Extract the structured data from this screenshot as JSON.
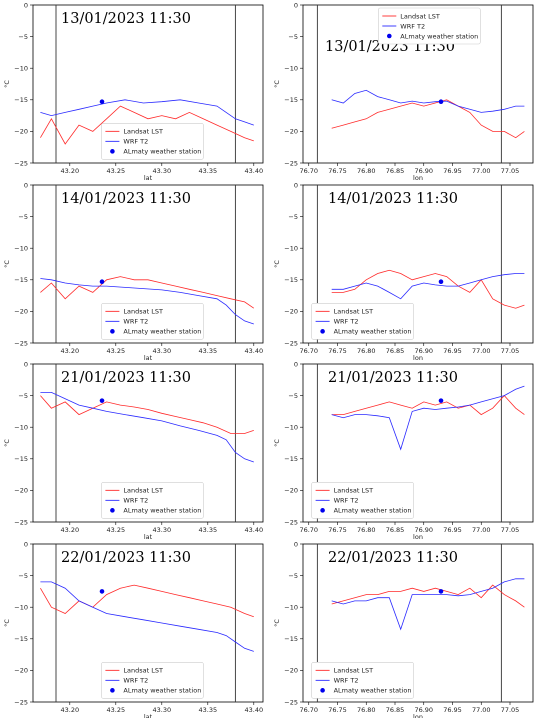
{
  "legend": {
    "lst": "Landsat LST",
    "wrf": "WRF T2",
    "station": "ALmaty weather station"
  },
  "colors": {
    "lst": "#ff2a2a",
    "wrf": "#2a2aff",
    "station": "#0000ee",
    "vline": "#333333"
  },
  "ylabel": "°C",
  "yticks": [
    "0",
    "−5",
    "−10",
    "−15",
    "−20",
    "−25"
  ],
  "ylim": [
    -25,
    0
  ],
  "lat_axis": {
    "label": "lat",
    "ticks": [
      "43.20",
      "43.25",
      "43.30",
      "43.35",
      "43.40"
    ],
    "tick_values": [
      43.2,
      43.25,
      43.3,
      43.35,
      43.4
    ],
    "xlim": [
      43.16,
      43.41
    ],
    "vlines": [
      43.185,
      43.38
    ]
  },
  "lon_axis": {
    "label": "lon",
    "ticks": [
      "76.70",
      "76.75",
      "76.80",
      "76.85",
      "76.90",
      "76.95",
      "77.00",
      "77.05"
    ],
    "tick_values": [
      76.7,
      76.75,
      76.8,
      76.85,
      76.9,
      76.95,
      77.0,
      77.05
    ],
    "xlim": [
      76.69,
      77.09
    ],
    "vlines": [
      76.715,
      77.035
    ]
  },
  "chart_data": [
    {
      "type": "line",
      "date": "13/01/2023 11:30",
      "axis": "lat",
      "legend_pos": "lower-center",
      "station": {
        "x": 43.235,
        "y": -15.3
      },
      "series": [
        {
          "name": "Landsat LST",
          "x": [
            43.168,
            43.18,
            43.195,
            43.21,
            43.225,
            43.24,
            43.255,
            43.27,
            43.285,
            43.3,
            43.315,
            43.33,
            43.345,
            43.36,
            43.375,
            43.39,
            43.4
          ],
          "y": [
            -21,
            -18,
            -22,
            -19,
            -20,
            -18,
            -16,
            -17,
            -18,
            -17.5,
            -18,
            -17,
            -18,
            -19,
            -20,
            -21,
            -21.5
          ]
        },
        {
          "name": "WRF T2",
          "x": [
            43.168,
            43.18,
            43.195,
            43.21,
            43.225,
            43.24,
            43.26,
            43.28,
            43.3,
            43.32,
            43.34,
            43.36,
            43.37,
            43.38,
            43.39,
            43.4
          ],
          "y": [
            -17,
            -17.5,
            -17,
            -16.5,
            -16,
            -15.5,
            -15,
            -15.5,
            -15.3,
            -15,
            -15.5,
            -16,
            -17,
            -18,
            -18.5,
            -19
          ]
        }
      ]
    },
    {
      "type": "line",
      "date": "13/01/2023 11:30",
      "axis": "lon",
      "legend_pos": "top",
      "station": {
        "x": 76.93,
        "y": -15.3
      },
      "series": [
        {
          "name": "Landsat LST",
          "x": [
            76.74,
            76.76,
            76.78,
            76.8,
            76.82,
            76.84,
            76.86,
            76.88,
            76.9,
            76.92,
            76.94,
            76.96,
            76.98,
            77.0,
            77.02,
            77.04,
            77.06,
            77.075
          ],
          "y": [
            -19.5,
            -19,
            -18.5,
            -18,
            -17,
            -16.5,
            -16,
            -15.5,
            -16,
            -15.5,
            -15,
            -16,
            -17,
            -19,
            -20,
            -20,
            -21,
            -20
          ]
        },
        {
          "name": "WRF T2",
          "x": [
            76.74,
            76.76,
            76.78,
            76.8,
            76.82,
            76.84,
            76.86,
            76.88,
            76.9,
            76.92,
            76.94,
            76.96,
            76.98,
            77.0,
            77.02,
            77.04,
            77.06,
            77.075
          ],
          "y": [
            -15,
            -15.5,
            -14,
            -13.5,
            -14.5,
            -15,
            -15.5,
            -15.2,
            -15.5,
            -15.3,
            -15.2,
            -16,
            -16.5,
            -17,
            -16.8,
            -16.5,
            -16,
            -16
          ]
        }
      ]
    },
    {
      "type": "line",
      "date": "14/01/2023 11:30",
      "axis": "lat",
      "legend_pos": "lower-center",
      "station": {
        "x": 43.235,
        "y": -15.3
      },
      "series": [
        {
          "name": "Landsat LST",
          "x": [
            43.168,
            43.18,
            43.195,
            43.21,
            43.225,
            43.24,
            43.255,
            43.27,
            43.285,
            43.3,
            43.315,
            43.33,
            43.345,
            43.36,
            43.375,
            43.39,
            43.4
          ],
          "y": [
            -17,
            -15.5,
            -18,
            -16,
            -17,
            -15,
            -14.5,
            -15,
            -15,
            -15.5,
            -16,
            -16.5,
            -17,
            -17.5,
            -18,
            -18.5,
            -19.5
          ]
        },
        {
          "name": "WRF T2",
          "x": [
            43.168,
            43.18,
            43.195,
            43.21,
            43.225,
            43.24,
            43.26,
            43.28,
            43.3,
            43.32,
            43.34,
            43.36,
            43.37,
            43.38,
            43.39,
            43.4
          ],
          "y": [
            -14.8,
            -15,
            -15.5,
            -15.8,
            -16,
            -16,
            -16.2,
            -16.4,
            -16.6,
            -17,
            -17.5,
            -18,
            -19,
            -20.5,
            -21.5,
            -22
          ]
        }
      ]
    },
    {
      "type": "line",
      "date": "14/01/2023 11:30",
      "axis": "lon",
      "legend_pos": "lower-left",
      "station": {
        "x": 76.93,
        "y": -15.3
      },
      "series": [
        {
          "name": "Landsat LST",
          "x": [
            76.74,
            76.76,
            76.78,
            76.8,
            76.82,
            76.84,
            76.86,
            76.88,
            76.9,
            76.92,
            76.94,
            76.96,
            76.98,
            77.0,
            77.02,
            77.04,
            77.06,
            77.075
          ],
          "y": [
            -17,
            -17,
            -16.5,
            -15,
            -14,
            -13.5,
            -14,
            -15,
            -14.5,
            -14,
            -14.5,
            -16,
            -17,
            -15,
            -18,
            -19,
            -19.5,
            -19
          ]
        },
        {
          "name": "WRF T2",
          "x": [
            76.74,
            76.76,
            76.78,
            76.8,
            76.82,
            76.84,
            76.86,
            76.88,
            76.9,
            76.92,
            76.94,
            76.96,
            76.98,
            77.0,
            77.02,
            77.04,
            77.06,
            77.075
          ],
          "y": [
            -16.5,
            -16.5,
            -16,
            -15.5,
            -16,
            -17,
            -18,
            -16,
            -15.5,
            -15.8,
            -16,
            -16,
            -15.5,
            -15,
            -14.5,
            -14.2,
            -14,
            -14
          ]
        }
      ]
    },
    {
      "type": "line",
      "date": "21/01/2023 11:30",
      "axis": "lat",
      "legend_pos": "lower-center",
      "station": {
        "x": 43.235,
        "y": -5.8
      },
      "series": [
        {
          "name": "Landsat LST",
          "x": [
            43.168,
            43.18,
            43.195,
            43.21,
            43.225,
            43.24,
            43.255,
            43.27,
            43.285,
            43.3,
            43.315,
            43.33,
            43.345,
            43.36,
            43.375,
            43.39,
            43.4
          ],
          "y": [
            -5,
            -7,
            -6,
            -8,
            -7,
            -6,
            -6.5,
            -6.8,
            -7.2,
            -7.8,
            -8.3,
            -8.8,
            -9.3,
            -10,
            -11,
            -11,
            -10.5
          ]
        },
        {
          "name": "WRF T2",
          "x": [
            43.168,
            43.18,
            43.195,
            43.21,
            43.225,
            43.24,
            43.26,
            43.28,
            43.3,
            43.32,
            43.34,
            43.36,
            43.37,
            43.38,
            43.39,
            43.4
          ],
          "y": [
            -4.5,
            -4.5,
            -5.5,
            -6.5,
            -7,
            -7.5,
            -8,
            -8.5,
            -9,
            -9.8,
            -10.5,
            -11.3,
            -12,
            -14,
            -15,
            -15.5
          ]
        }
      ]
    },
    {
      "type": "line",
      "date": "21/01/2023 11:30",
      "axis": "lon",
      "legend_pos": "lower-left",
      "station": {
        "x": 76.93,
        "y": -5.8
      },
      "series": [
        {
          "name": "Landsat LST",
          "x": [
            76.74,
            76.76,
            76.78,
            76.8,
            76.82,
            76.84,
            76.86,
            76.88,
            76.9,
            76.92,
            76.94,
            76.96,
            76.98,
            77.0,
            77.02,
            77.04,
            77.06,
            77.075
          ],
          "y": [
            -8,
            -8,
            -7.5,
            -7,
            -6.5,
            -6,
            -6.5,
            -7,
            -6,
            -6.5,
            -6,
            -7,
            -6.5,
            -8,
            -7,
            -5,
            -7,
            -8
          ]
        },
        {
          "name": "WRF T2",
          "x": [
            76.74,
            76.76,
            76.78,
            76.8,
            76.82,
            76.84,
            76.86,
            76.88,
            76.9,
            76.92,
            76.94,
            76.96,
            76.98,
            77.0,
            77.02,
            77.04,
            77.06,
            77.075
          ],
          "y": [
            -8,
            -8.5,
            -8,
            -8,
            -8.2,
            -8.5,
            -13.5,
            -7.5,
            -7,
            -7.2,
            -7,
            -6.8,
            -6.5,
            -6,
            -5.5,
            -5,
            -4,
            -3.5
          ]
        }
      ]
    },
    {
      "type": "line",
      "date": "22/01/2023 11:30",
      "axis": "lat",
      "legend_pos": "lower-center",
      "station": {
        "x": 43.235,
        "y": -7.5
      },
      "series": [
        {
          "name": "Landsat LST",
          "x": [
            43.168,
            43.18,
            43.195,
            43.21,
            43.225,
            43.24,
            43.255,
            43.27,
            43.285,
            43.3,
            43.315,
            43.33,
            43.345,
            43.36,
            43.375,
            43.39,
            43.4
          ],
          "y": [
            -7,
            -10,
            -11,
            -9,
            -10,
            -8,
            -7,
            -6.5,
            -7,
            -7.5,
            -8,
            -8.5,
            -9,
            -9.5,
            -10,
            -11,
            -11.5
          ]
        },
        {
          "name": "WRF T2",
          "x": [
            43.168,
            43.18,
            43.195,
            43.21,
            43.225,
            43.24,
            43.26,
            43.28,
            43.3,
            43.32,
            43.34,
            43.36,
            43.37,
            43.38,
            43.39,
            43.4
          ],
          "y": [
            -6,
            -6,
            -7,
            -9,
            -10,
            -11,
            -11.5,
            -12,
            -12.5,
            -13,
            -13.5,
            -14,
            -14.5,
            -15.5,
            -16.5,
            -17
          ]
        }
      ]
    },
    {
      "type": "line",
      "date": "22/01/2023 11:30",
      "axis": "lon",
      "legend_pos": "lower-left",
      "station": {
        "x": 76.93,
        "y": -7.5
      },
      "series": [
        {
          "name": "Landsat LST",
          "x": [
            76.74,
            76.76,
            76.78,
            76.8,
            76.82,
            76.84,
            76.86,
            76.88,
            76.9,
            76.92,
            76.94,
            76.96,
            76.98,
            77.0,
            77.02,
            77.04,
            77.06,
            77.075
          ],
          "y": [
            -9.5,
            -9,
            -8.5,
            -8,
            -8,
            -7.5,
            -7.5,
            -7,
            -7.5,
            -7,
            -7.5,
            -8,
            -7,
            -8.5,
            -6.5,
            -8,
            -9,
            -10
          ]
        },
        {
          "name": "WRF T2",
          "x": [
            76.74,
            76.76,
            76.78,
            76.8,
            76.82,
            76.84,
            76.86,
            76.88,
            76.9,
            76.92,
            76.94,
            76.96,
            76.98,
            77.0,
            77.02,
            77.04,
            77.06,
            77.075
          ],
          "y": [
            -9,
            -9.5,
            -9,
            -9,
            -8.5,
            -8.5,
            -13.5,
            -8,
            -8,
            -8,
            -8,
            -8.2,
            -8,
            -7.5,
            -7,
            -6,
            -5.5,
            -5.5
          ]
        }
      ]
    }
  ]
}
